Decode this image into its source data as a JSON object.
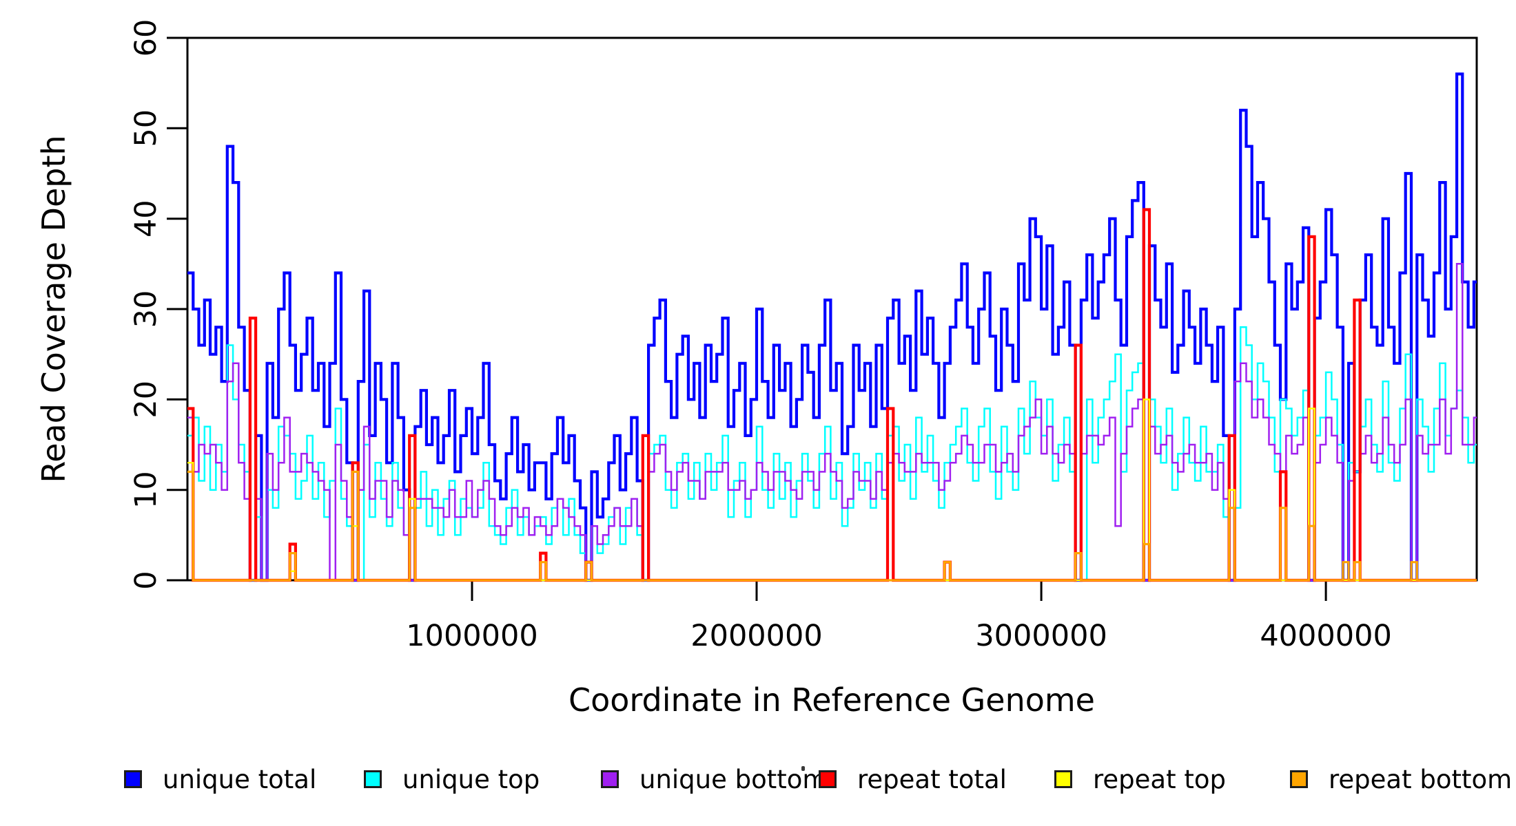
{
  "chart_data": {
    "type": "line",
    "subtype": "step",
    "title": "",
    "xlabel": "Coordinate in Reference Genome",
    "ylabel": "Read Coverage Depth",
    "xlim": [
      0,
      4530000
    ],
    "ylim": [
      0,
      60
    ],
    "x_ticks": [
      1000000,
      2000000,
      3000000,
      4000000
    ],
    "x_tick_labels": [
      "1000000",
      "2000000",
      "3000000",
      "4000000"
    ],
    "y_ticks": [
      0,
      10,
      20,
      30,
      40,
      50,
      60
    ],
    "y_tick_labels": [
      "0",
      "10",
      "20",
      "30",
      "40",
      "50",
      "60"
    ],
    "grid": "off",
    "legend_position": "bottom",
    "x_start": 0,
    "x_step": 20000,
    "n_bins": 227,
    "series": [
      {
        "name": "unique total",
        "color": "#0000FF",
        "width": 4.2,
        "values": [
          34,
          30,
          26,
          31,
          25,
          28,
          22,
          48,
          44,
          28,
          21,
          0,
          16,
          0,
          24,
          18,
          30,
          34,
          26,
          21,
          25,
          29,
          21,
          24,
          17,
          24,
          34,
          20,
          13,
          0,
          22,
          32,
          16,
          24,
          20,
          13,
          24,
          18,
          10,
          0,
          17,
          21,
          15,
          18,
          13,
          16,
          21,
          12,
          16,
          19,
          14,
          18,
          24,
          15,
          11,
          9,
          14,
          18,
          12,
          15,
          10,
          13,
          13,
          9,
          14,
          18,
          13,
          16,
          11,
          8,
          0,
          12,
          7,
          9,
          13,
          16,
          10,
          14,
          18,
          11,
          0,
          26,
          29,
          31,
          22,
          18,
          25,
          27,
          20,
          24,
          18,
          26,
          22,
          25,
          29,
          17,
          21,
          24,
          16,
          20,
          30,
          22,
          18,
          26,
          21,
          24,
          17,
          20,
          26,
          23,
          18,
          26,
          31,
          21,
          24,
          14,
          17,
          26,
          21,
          24,
          17,
          26,
          19,
          29,
          31,
          24,
          27,
          21,
          32,
          25,
          29,
          24,
          18,
          24,
          28,
          31,
          35,
          28,
          24,
          30,
          34,
          27,
          21,
          30,
          26,
          22,
          35,
          31,
          40,
          38,
          30,
          37,
          25,
          28,
          33,
          26,
          0,
          31,
          36,
          29,
          33,
          36,
          40,
          31,
          26,
          38,
          42,
          44,
          0,
          37,
          31,
          28,
          35,
          23,
          26,
          32,
          28,
          24,
          30,
          26,
          22,
          28,
          16,
          0,
          30,
          52,
          48,
          38,
          44,
          40,
          33,
          26,
          20,
          35,
          30,
          33,
          39,
          0,
          29,
          33,
          41,
          36,
          28,
          0,
          24,
          12,
          31,
          36,
          28,
          26,
          40,
          28,
          24,
          34,
          45,
          0,
          36,
          31,
          27,
          34,
          44,
          30,
          38,
          56,
          33,
          28,
          33
        ]
      },
      {
        "name": "unique top",
        "color": "#00FFFF",
        "width": 2.5,
        "values": [
          16,
          18,
          11,
          17,
          10,
          15,
          12,
          26,
          20,
          15,
          12,
          0,
          7,
          0,
          10,
          8,
          17,
          16,
          14,
          9,
          11,
          16,
          9,
          13,
          7,
          11,
          19,
          9,
          6,
          0,
          0,
          15,
          7,
          13,
          9,
          6,
          13,
          8,
          5,
          0,
          8,
          12,
          6,
          10,
          5,
          9,
          11,
          5,
          9,
          8,
          7,
          8,
          13,
          6,
          5,
          4,
          8,
          10,
          5,
          7,
          5,
          6,
          7,
          4,
          8,
          9,
          5,
          9,
          5,
          3,
          0,
          6,
          3,
          4,
          7,
          8,
          4,
          8,
          9,
          5,
          0,
          14,
          15,
          16,
          10,
          8,
          13,
          14,
          9,
          13,
          9,
          14,
          10,
          13,
          16,
          7,
          11,
          13,
          7,
          10,
          17,
          10,
          8,
          14,
          9,
          13,
          7,
          11,
          14,
          11,
          8,
          14,
          17,
          9,
          13,
          6,
          8,
          14,
          10,
          13,
          8,
          14,
          9,
          16,
          17,
          11,
          15,
          9,
          18,
          12,
          16,
          11,
          8,
          13,
          15,
          17,
          19,
          13,
          11,
          17,
          19,
          12,
          9,
          17,
          12,
          10,
          19,
          14,
          22,
          18,
          16,
          20,
          11,
          15,
          18,
          12,
          0,
          0,
          20,
          13,
          18,
          20,
          22,
          25,
          12,
          21,
          23,
          24,
          0,
          20,
          17,
          13,
          19,
          10,
          14,
          18,
          13,
          11,
          17,
          12,
          12,
          15,
          7,
          0,
          8,
          28,
          26,
          20,
          24,
          22,
          18,
          12,
          20,
          19,
          16,
          18,
          21,
          0,
          16,
          18,
          23,
          20,
          15,
          0,
          13,
          12,
          17,
          20,
          15,
          12,
          22,
          13,
          11,
          19,
          25,
          0,
          20,
          17,
          12,
          19,
          24,
          16,
          19,
          21,
          18,
          13,
          15
        ]
      },
      {
        "name": "unique bottom",
        "color": "#A020F0",
        "width": 2.5,
        "values": [
          18,
          12,
          15,
          14,
          15,
          13,
          10,
          22,
          24,
          13,
          9,
          0,
          9,
          0,
          14,
          10,
          13,
          18,
          12,
          12,
          14,
          13,
          12,
          11,
          10,
          0,
          15,
          11,
          7,
          0,
          10,
          17,
          9,
          11,
          11,
          7,
          11,
          10,
          5,
          0,
          9,
          9,
          9,
          8,
          8,
          7,
          10,
          7,
          7,
          11,
          7,
          10,
          11,
          9,
          6,
          5,
          6,
          8,
          7,
          8,
          5,
          7,
          6,
          5,
          6,
          9,
          8,
          7,
          6,
          5,
          0,
          6,
          4,
          5,
          6,
          8,
          6,
          6,
          9,
          6,
          0,
          12,
          14,
          15,
          12,
          10,
          12,
          13,
          11,
          11,
          9,
          12,
          12,
          12,
          13,
          10,
          10,
          11,
          9,
          10,
          13,
          12,
          10,
          12,
          12,
          11,
          10,
          9,
          12,
          12,
          10,
          12,
          14,
          12,
          11,
          8,
          9,
          12,
          11,
          11,
          9,
          12,
          10,
          13,
          14,
          13,
          12,
          12,
          14,
          13,
          13,
          13,
          10,
          11,
          13,
          14,
          16,
          15,
          13,
          13,
          15,
          15,
          12,
          13,
          14,
          12,
          16,
          17,
          18,
          20,
          14,
          17,
          14,
          13,
          15,
          14,
          0,
          14,
          16,
          16,
          15,
          16,
          18,
          6,
          14,
          17,
          19,
          20,
          0,
          17,
          14,
          15,
          16,
          13,
          12,
          14,
          15,
          13,
          13,
          14,
          10,
          13,
          9,
          0,
          22,
          24,
          22,
          18,
          20,
          18,
          15,
          14,
          0,
          16,
          14,
          15,
          18,
          0,
          13,
          15,
          18,
          16,
          13,
          0,
          11,
          0,
          14,
          16,
          13,
          14,
          18,
          15,
          13,
          15,
          20,
          0,
          16,
          14,
          15,
          15,
          20,
          14,
          19,
          35,
          15,
          15,
          18
        ]
      },
      {
        "name": "repeat total",
        "color": "#FF0000",
        "width": 4.2,
        "baseline": 0,
        "spikes": [
          [
            0,
            19
          ],
          [
            11,
            29
          ],
          [
            18,
            4
          ],
          [
            29,
            13
          ],
          [
            39,
            16
          ],
          [
            62,
            3
          ],
          [
            70,
            2
          ],
          [
            80,
            16
          ],
          [
            123,
            19
          ],
          [
            133,
            2
          ],
          [
            156,
            26
          ],
          [
            168,
            41
          ],
          [
            183,
            16
          ],
          [
            192,
            12
          ],
          [
            197,
            38
          ],
          [
            205,
            31
          ]
        ]
      },
      {
        "name": "repeat top",
        "color": "#FFFF00",
        "width": 2.5,
        "baseline": 0,
        "spikes": [
          [
            0,
            13
          ],
          [
            18,
            1
          ],
          [
            29,
            6
          ],
          [
            39,
            9
          ],
          [
            168,
            20
          ],
          [
            183,
            10
          ],
          [
            197,
            19
          ]
        ]
      },
      {
        "name": "repeat bottom",
        "color": "#FFA500",
        "width": 3.2,
        "baseline": 0,
        "spikes": [
          [
            0,
            12
          ],
          [
            18,
            3
          ],
          [
            29,
            12
          ],
          [
            39,
            8
          ],
          [
            62,
            2
          ],
          [
            70,
            2
          ],
          [
            133,
            2
          ],
          [
            156,
            3
          ],
          [
            168,
            4
          ],
          [
            183,
            8
          ],
          [
            192,
            8
          ],
          [
            197,
            6
          ],
          [
            203,
            2
          ],
          [
            205,
            2
          ],
          [
            215,
            2
          ]
        ]
      }
    ]
  }
}
